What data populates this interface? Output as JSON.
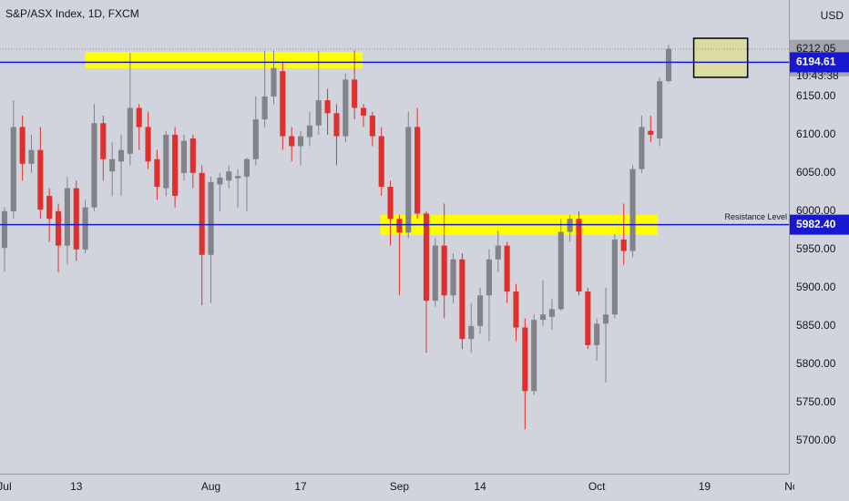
{
  "chart_data": {
    "type": "candlestick",
    "title": "S&P/ASX Index, 1D, FXCM",
    "currency": "USD",
    "xlim": [
      -0.5,
      87.4
    ],
    "xticks": [
      {
        "value": 0,
        "label": "Jul"
      },
      {
        "value": 8,
        "label": "13"
      },
      {
        "value": 23,
        "label": "Aug"
      },
      {
        "value": 33,
        "label": "17"
      },
      {
        "value": 44,
        "label": "Sep"
      },
      {
        "value": 53,
        "label": "14"
      },
      {
        "value": 66,
        "label": "Oct"
      },
      {
        "value": 78,
        "label": "19"
      },
      {
        "value": 88,
        "label": "Nov"
      }
    ],
    "ylim": [
      5657,
      6276
    ],
    "yticks": [
      {
        "value": 5700,
        "label": "5700.00"
      },
      {
        "value": 5750,
        "label": "5750.00"
      },
      {
        "value": 5800,
        "label": "5800.00"
      },
      {
        "value": 5850,
        "label": "5850.00"
      },
      {
        "value": 5900,
        "label": "5900.00"
      },
      {
        "value": 5950,
        "label": "5950.00"
      },
      {
        "value": 6000,
        "label": "6000.00"
      },
      {
        "value": 6050,
        "label": "6050.00"
      },
      {
        "value": 6100,
        "label": "6100.00"
      },
      {
        "value": 6150,
        "label": "6150.00"
      }
    ],
    "grid": false,
    "up_color": "#808389",
    "down_color": "#e0302e",
    "open": [
      5952,
      6000,
      6110,
      6062,
      6080,
      6020,
      6000,
      5955,
      6030,
      5950,
      6005,
      6115,
      6052,
      6065,
      6075,
      6135,
      6110,
      6068,
      6030,
      6100,
      6050,
      6095,
      6050,
      5943,
      6035,
      6040,
      6043,
      6045,
      6068,
      6120,
      6150,
      6183,
      6098,
      6085,
      6097,
      6112,
      6145,
      6128,
      6098,
      6172,
      6135,
      6125,
      6098,
      6032,
      5990,
      5972,
      6110,
      5997,
      5883,
      5955,
      5890,
      5937,
      5833,
      5850,
      5890,
      5937,
      5955,
      5895,
      5848,
      5765,
      5858,
      5862,
      5872,
      5973,
      5990,
      5895,
      5825,
      5853,
      5865,
      5963,
      5948,
      6055,
      6105,
      6095,
      6170
    ],
    "high": [
      6005,
      6145,
      6125,
      6100,
      6110,
      6030,
      6010,
      6045,
      6040,
      6015,
      6140,
      6125,
      6090,
      6100,
      6207,
      6140,
      6130,
      6080,
      6105,
      6110,
      6100,
      6100,
      6060,
      6045,
      6050,
      6060,
      6055,
      6070,
      6150,
      6210,
      6210,
      6195,
      6110,
      6105,
      6130,
      6210,
      6160,
      6140,
      6180,
      6210,
      6140,
      6130,
      6110,
      6040,
      5995,
      6130,
      6135,
      6000,
      5965,
      6010,
      5945,
      5945,
      5880,
      5900,
      5950,
      5975,
      5960,
      5905,
      5860,
      5865,
      5910,
      5885,
      5990,
      5995,
      6000,
      5900,
      5860,
      5900,
      5970,
      6010,
      6060,
      6125,
      6125,
      6175,
      6218
    ],
    "low": [
      5921,
      5990,
      6040,
      6050,
      5990,
      5960,
      5920,
      5930,
      5935,
      5945,
      6000,
      6040,
      6020,
      6020,
      6060,
      6080,
      6055,
      6015,
      6020,
      6005,
      6040,
      6030,
      5877,
      5880,
      6000,
      6030,
      6005,
      6000,
      6060,
      6110,
      6140,
      6080,
      6065,
      6060,
      6085,
      6100,
      6100,
      6060,
      6090,
      6120,
      6110,
      6085,
      6020,
      5955,
      5890,
      5965,
      5990,
      5815,
      5875,
      5860,
      5880,
      5820,
      5815,
      5840,
      5830,
      5920,
      5880,
      5830,
      5715,
      5760,
      5850,
      5845,
      5870,
      5960,
      5890,
      5820,
      5805,
      5776,
      5860,
      5930,
      5940,
      6050,
      6090,
      6085,
      6168
    ],
    "close": [
      6000,
      6110,
      6062,
      6080,
      6002,
      5990,
      5955,
      6030,
      5950,
      6005,
      6115,
      6068,
      6068,
      6080,
      6135,
      6110,
      6065,
      6032,
      6100,
      6020,
      6092,
      6050,
      5943,
      6038,
      6044,
      6052,
      6046,
      6068,
      6120,
      6150,
      6187,
      6098,
      6085,
      6098,
      6112,
      6145,
      6128,
      6098,
      6172,
      6135,
      6125,
      6098,
      6032,
      5990,
      5972,
      6110,
      5997,
      5883,
      5955,
      5890,
      5937,
      5833,
      5850,
      5890,
      5937,
      5955,
      5895,
      5848,
      5765,
      5858,
      5865,
      5872,
      5973,
      5990,
      5895,
      5825,
      5853,
      5865,
      5963,
      5948,
      6055,
      6110,
      6100,
      6170,
      6212.05
    ],
    "zones": [
      {
        "x": [
          9,
          39.9
        ],
        "y": [
          6187,
          6208
        ],
        "fill": "#ffff00",
        "border": "none"
      },
      {
        "x": [
          41.9,
          72.8
        ],
        "y": [
          5969,
          5995
        ],
        "fill": "#ffff00",
        "border": "none"
      },
      {
        "x": [
          76.8,
          82.8
        ],
        "y": [
          6175,
          6226
        ],
        "fill": "#dcdca2",
        "border": "#000000"
      }
    ],
    "hlines": [
      {
        "value": 6194.61,
        "label": "6194.61",
        "color": "#1818d0"
      },
      {
        "value": 5982.4,
        "label": "5982.40",
        "color": "#1818d0",
        "annotation": "Resistance Level"
      }
    ],
    "last_price": {
      "value": 6212.05,
      "label": "6212.05",
      "countdown": "10:43:38"
    }
  }
}
